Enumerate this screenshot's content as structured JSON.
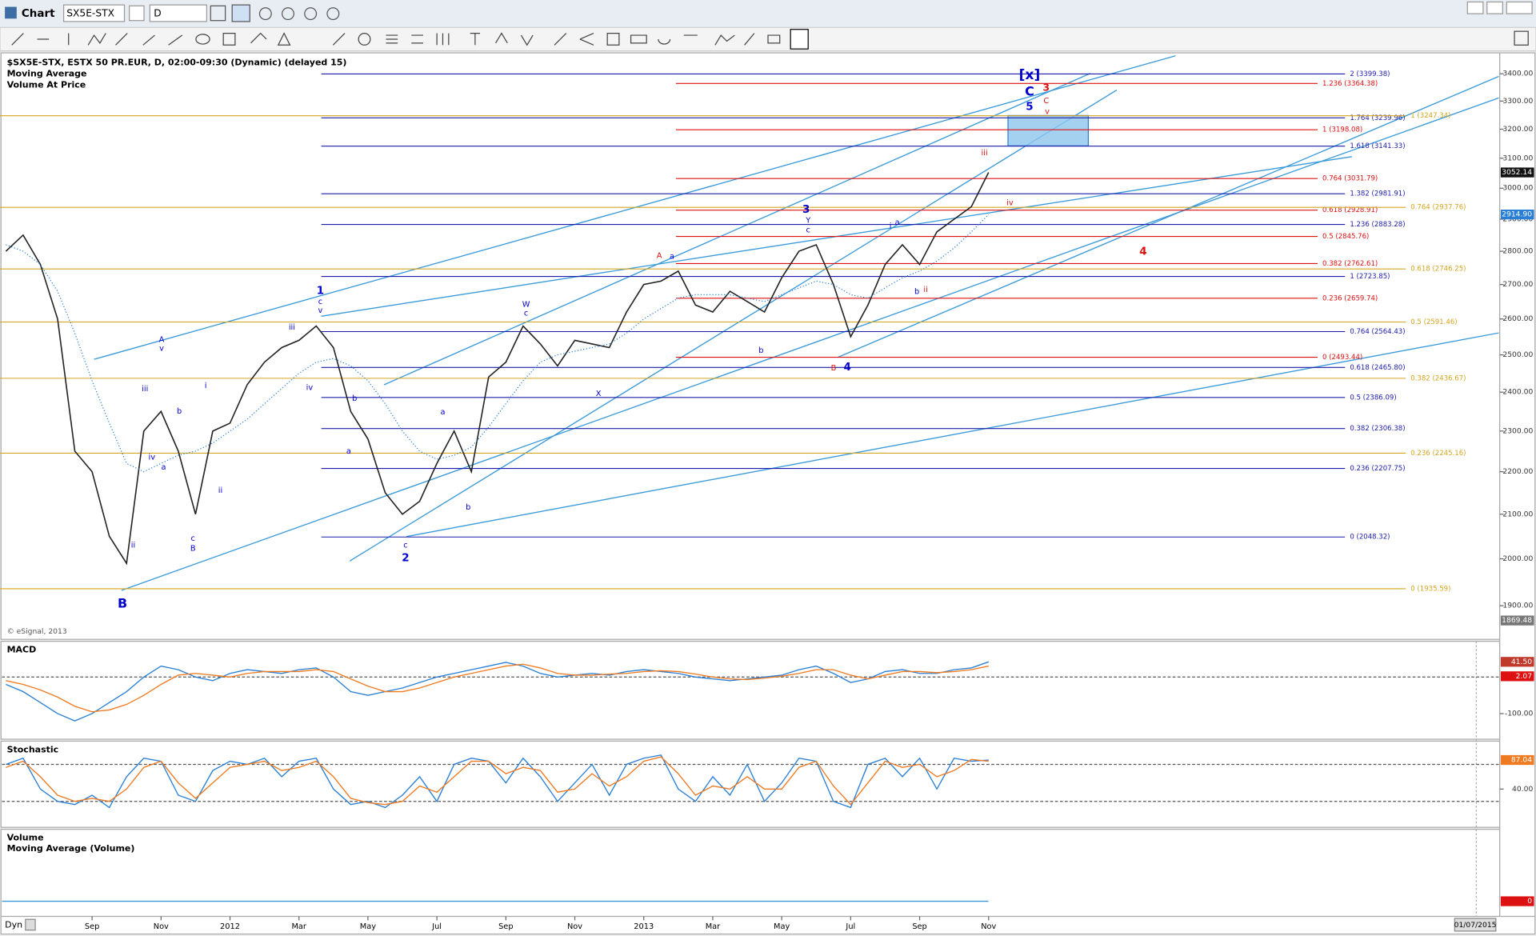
{
  "ui": {
    "title": "Chart",
    "symbol": "SX5E-STX",
    "interval": "D",
    "footer_left": "Dyn",
    "date_box": "01/07/2015",
    "copyright": "© eSignal, 2013"
  },
  "chart_data": [
    {
      "type": "line",
      "log_scale": true,
      "overlay_label": "Volume At Price",
      "categories": [
        null,
        null,
        null,
        null,
        null,
        "Sep",
        null,
        null,
        null,
        "Nov",
        null,
        null,
        null,
        "2012",
        null,
        null,
        null,
        "Mar",
        null,
        null,
        null,
        "May",
        null,
        null,
        null,
        "Jul",
        null,
        null,
        null,
        "Sep",
        null,
        null,
        null,
        "Nov",
        null,
        null,
        null,
        "2013",
        null,
        null,
        null,
        "Mar",
        null,
        null,
        null,
        "May",
        null,
        null,
        null,
        "Jul",
        null,
        null,
        null,
        "Sep",
        null,
        null,
        null,
        "Nov"
      ],
      "series": [
        {
          "name": "$SX5E-STX, ESTX 50 PR.EUR, D, 02:00-09:30 (Dynamic) (delayed 15)",
          "color": "#222222",
          "values": [
            2800,
            2850,
            2760,
            2600,
            2250,
            2200,
            2050,
            1990,
            2300,
            2350,
            2250,
            2100,
            2300,
            2320,
            2420,
            2480,
            2520,
            2540,
            2580,
            2520,
            2350,
            2280,
            2150,
            2100,
            2130,
            2220,
            2300,
            2200,
            2440,
            2480,
            2580,
            2530,
            2470,
            2540,
            2530,
            2520,
            2620,
            2700,
            2710,
            2740,
            2640,
            2620,
            2680,
            2650,
            2620,
            2720,
            2800,
            2820,
            2700,
            2550,
            2640,
            2760,
            2820,
            2760,
            2860,
            2900,
            2940,
            3052.14
          ]
        },
        {
          "name": "Moving Average",
          "color": "#2a7fd4",
          "dotted": true,
          "values": [
            2820,
            2800,
            2760,
            2680,
            2560,
            2430,
            2320,
            2220,
            2200,
            2220,
            2240,
            2250,
            2270,
            2300,
            2330,
            2370,
            2410,
            2450,
            2480,
            2490,
            2470,
            2430,
            2370,
            2300,
            2250,
            2230,
            2240,
            2260,
            2310,
            2370,
            2430,
            2480,
            2500,
            2510,
            2520,
            2530,
            2560,
            2600,
            2630,
            2660,
            2670,
            2670,
            2670,
            2660,
            2650,
            2670,
            2690,
            2710,
            2700,
            2670,
            2660,
            2690,
            2720,
            2740,
            2770,
            2810,
            2860,
            2914.9
          ]
        }
      ],
      "ylim": [
        1865,
        3475
      ],
      "yticks": [
        {
          "value": 1900,
          "label": "1900.00"
        },
        {
          "value": 2000,
          "label": "2000.00"
        },
        {
          "value": 2100,
          "label": "2100.00"
        },
        {
          "value": 2200,
          "label": "2200.00"
        },
        {
          "value": 2300,
          "label": "2300.00"
        },
        {
          "value": 2400,
          "label": "2400.00"
        },
        {
          "value": 2500,
          "label": "2500.00"
        },
        {
          "value": 2600,
          "label": "2600.00"
        },
        {
          "value": 2700,
          "label": "2700.00"
        },
        {
          "value": 2800,
          "label": "2800.00"
        },
        {
          "value": 2900,
          "label": "2900.00"
        },
        {
          "value": 3000,
          "label": "3000.00"
        },
        {
          "value": 3100,
          "label": "3100.00"
        },
        {
          "value": 3200,
          "label": "3200.00"
        },
        {
          "value": 3300,
          "label": "3300.00"
        },
        {
          "value": 3400,
          "label": "3400.00"
        }
      ],
      "tags": [
        {
          "value": 3052.14,
          "label": "3052.14",
          "color": "#111111"
        },
        {
          "value": 2914.9,
          "label": "2914.90",
          "color": "#2a7fd4"
        },
        {
          "value": 1869.48,
          "label": "1869.48",
          "color": "#777777"
        }
      ],
      "fib_sets": [
        {
          "color": "#1c1caa",
          "levels": [
            {
              "label": "2 (3399.38)",
              "value": 3399.38
            },
            {
              "label": "1.764 (3239.96)",
              "value": 3239.96
            },
            {
              "label": "1.618 (3141.33)",
              "value": 3141.33
            },
            {
              "label": "1.382 (2981.91)",
              "value": 2981.91
            },
            {
              "label": "1.236 (2883.28)",
              "value": 2883.28
            },
            {
              "label": "1 (2723.85)",
              "value": 2723.85
            },
            {
              "label": "0.764 (2564.43)",
              "value": 2564.43
            },
            {
              "label": "0.618 (2465.80)",
              "value": 2465.8
            },
            {
              "label": "0.5 (2386.09)",
              "value": 2386.09
            },
            {
              "label": "0.382 (2306.38)",
              "value": 2306.38
            },
            {
              "label": "0.236 (2207.75)",
              "value": 2207.75
            },
            {
              "label": "0 (2048.32)",
              "value": 2048.32
            }
          ]
        },
        {
          "color": "#dd1111",
          "levels": [
            {
              "label": "1.236 (3364.38)",
              "value": 3364.38
            },
            {
              "label": "1 (3198.08)",
              "value": 3198.08
            },
            {
              "label": "0.764 (3031.79)",
              "value": 3031.79
            },
            {
              "label": "0.618 (2928.91)",
              "value": 2928.91
            },
            {
              "label": "0.5 (2845.76)",
              "value": 2845.76
            },
            {
              "label": "0.382 (2762.61)",
              "value": 2762.61
            },
            {
              "label": "0.236 (2659.74)",
              "value": 2659.74
            },
            {
              "label": "0 (2493.44)",
              "value": 2493.44
            }
          ]
        },
        {
          "color": "#d4a520",
          "levels": [
            {
              "label": "1 (3247.34)",
              "value": 3247.34
            },
            {
              "label": "0.764 (2937.76)",
              "value": 2937.76
            },
            {
              "label": "0.618 (2746.25)",
              "value": 2746.25
            },
            {
              "label": "0.5 (2591.46)",
              "value": 2591.46
            },
            {
              "label": "0.382 (2436.67)",
              "value": 2436.67
            },
            {
              "label": "0.236 (2245.16)",
              "value": 2245.16
            },
            {
              "label": "0 (1935.59)",
              "value": 1935.59
            }
          ]
        }
      ],
      "annotations": [
        {
          "text": "B",
          "color": "#0000cc"
        },
        {
          "text": "1",
          "color": "#0000cc"
        },
        {
          "text": "2",
          "color": "#0000cc"
        },
        {
          "text": "3",
          "color": "#0000cc"
        },
        {
          "text": "4",
          "color": "#0000cc"
        },
        {
          "text": "5",
          "color": "#0000cc"
        },
        {
          "text": "C",
          "color": "#0000cc"
        },
        {
          "text": "[x]",
          "color": "#0000cc"
        },
        {
          "text": "3",
          "color": "#dd1111"
        },
        {
          "text": "4",
          "color": "#dd1111"
        },
        {
          "text": "A",
          "color": "#0000cc"
        },
        {
          "text": "v",
          "color": "#0000cc"
        },
        {
          "text": "iii",
          "color": "#0000cc"
        },
        {
          "text": "iv",
          "color": "#0000cc"
        },
        {
          "text": "a",
          "color": "#0000cc"
        },
        {
          "text": "b",
          "color": "#0000cc"
        },
        {
          "text": "i",
          "color": "#0000cc"
        },
        {
          "text": "c",
          "color": "#0000cc"
        },
        {
          "text": "B",
          "color": "#0000cc"
        },
        {
          "text": "ii",
          "color": "#0000cc"
        },
        {
          "text": "ii",
          "color": "#0000cc"
        },
        {
          "text": "iii",
          "color": "#0000cc"
        },
        {
          "text": "c",
          "color": "#0000cc"
        },
        {
          "text": "v",
          "color": "#0000cc"
        },
        {
          "text": "iv",
          "color": "#0000cc"
        },
        {
          "text": "b",
          "color": "#0000cc"
        },
        {
          "text": "a",
          "color": "#0000cc"
        },
        {
          "text": "c",
          "color": "#0000cc"
        },
        {
          "text": "a",
          "color": "#0000cc"
        },
        {
          "text": "b",
          "color": "#0000cc"
        },
        {
          "text": "W",
          "color": "#0000cc"
        },
        {
          "text": "c",
          "color": "#0000cc"
        },
        {
          "text": "X",
          "color": "#0000cc"
        },
        {
          "text": "a",
          "color": "#0000cc"
        },
        {
          "text": "b",
          "color": "#0000cc"
        },
        {
          "text": "Y",
          "color": "#0000cc"
        },
        {
          "text": "c",
          "color": "#0000cc"
        },
        {
          "text": "i",
          "color": "#0000cc"
        },
        {
          "text": "a",
          "color": "#0000cc"
        },
        {
          "text": "b",
          "color": "#0000cc"
        },
        {
          "text": "A",
          "color": "#dd1111"
        },
        {
          "text": "B",
          "color": "#dd1111"
        },
        {
          "text": "iii",
          "color": "#dd1111"
        },
        {
          "text": "iv",
          "color": "#dd1111"
        },
        {
          "text": "ii",
          "color": "#dd1111"
        },
        {
          "text": "C",
          "color": "#dd1111"
        },
        {
          "text": "v",
          "color": "#dd1111"
        }
      ]
    },
    {
      "type": "line",
      "title": "MACD",
      "ylim": [
        -170,
        95
      ],
      "yticks": [
        {
          "value": -100,
          "label": "-100.00"
        }
      ],
      "levels": [
        0
      ],
      "tags": [
        {
          "value": 41.5,
          "label": "41.50",
          "color": "#c0392b"
        },
        {
          "value": 2.07,
          "label": "2.07",
          "color": "#dd1111"
        }
      ],
      "series": [
        {
          "color": "#2a7fd4",
          "values": [
            -20,
            -40,
            -70,
            -100,
            -120,
            -100,
            -70,
            -40,
            0,
            30,
            20,
            0,
            -10,
            10,
            20,
            15,
            10,
            20,
            25,
            0,
            -40,
            -50,
            -40,
            -30,
            -15,
            0,
            10,
            20,
            30,
            40,
            30,
            10,
            0,
            5,
            10,
            5,
            15,
            20,
            15,
            10,
            0,
            -5,
            -10,
            -5,
            0,
            5,
            20,
            30,
            10,
            -15,
            -5,
            15,
            20,
            10,
            10,
            20,
            25,
            41.5
          ]
        },
        {
          "color": "#ee7a22",
          "values": [
            -10,
            -20,
            -35,
            -55,
            -80,
            -95,
            -90,
            -75,
            -50,
            -20,
            5,
            10,
            5,
            0,
            10,
            15,
            15,
            15,
            20,
            15,
            -5,
            -25,
            -40,
            -40,
            -30,
            -15,
            0,
            10,
            20,
            30,
            35,
            25,
            10,
            5,
            5,
            8,
            10,
            15,
            17,
            15,
            8,
            0,
            -5,
            -7,
            -3,
            2,
            10,
            20,
            20,
            5,
            -5,
            5,
            15,
            15,
            12,
            15,
            20,
            30
          ]
        }
      ]
    },
    {
      "type": "line",
      "title": "Stochastic",
      "ylim": [
        -22,
        116
      ],
      "yticks": [
        {
          "value": 40,
          "label": "40.00"
        }
      ],
      "levels": [
        80,
        20
      ],
      "tags": [
        {
          "value": 87.04,
          "label": "87.04",
          "color": "#ee7a22"
        }
      ],
      "series": [
        {
          "color": "#2a7fd4",
          "values": [
            80,
            90,
            40,
            20,
            15,
            30,
            10,
            60,
            90,
            85,
            30,
            20,
            70,
            85,
            80,
            90,
            60,
            85,
            90,
            40,
            15,
            20,
            10,
            30,
            60,
            20,
            80,
            90,
            85,
            50,
            90,
            60,
            20,
            50,
            80,
            30,
            80,
            90,
            95,
            40,
            20,
            60,
            30,
            80,
            20,
            50,
            90,
            85,
            20,
            10,
            80,
            90,
            60,
            90,
            40,
            90,
            85,
            87.04
          ]
        },
        {
          "color": "#ee7a22",
          "values": [
            75,
            85,
            60,
            30,
            20,
            25,
            20,
            40,
            75,
            85,
            50,
            25,
            50,
            75,
            80,
            85,
            70,
            75,
            85,
            60,
            25,
            18,
            15,
            20,
            45,
            35,
            60,
            85,
            85,
            65,
            75,
            70,
            35,
            40,
            65,
            45,
            60,
            85,
            92,
            65,
            30,
            45,
            40,
            60,
            40,
            40,
            75,
            85,
            45,
            15,
            50,
            85,
            75,
            80,
            60,
            70,
            88,
            85
          ]
        }
      ]
    },
    {
      "type": "line",
      "title": "Volume",
      "subtitle": "Moving Average (Volume)",
      "ylim": [
        -10,
        50
      ],
      "tags": [
        {
          "value": 0,
          "label": "0",
          "color": "#dd1111"
        }
      ]
    }
  ]
}
